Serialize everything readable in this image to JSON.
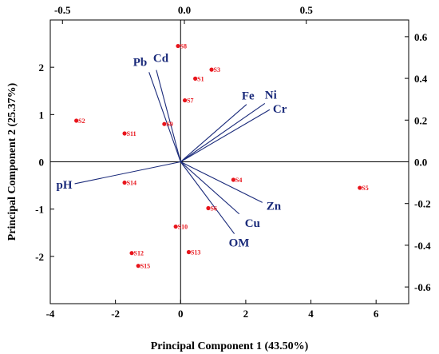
{
  "chart_data": {
    "type": "scatter",
    "subtype": "biplot",
    "xlabel": "Principal Component 1 (43.50%)",
    "ylabel": "Principal Component 2 (25.37%)",
    "xlim": [
      -4,
      7
    ],
    "ylim": [
      -3,
      3
    ],
    "xticks": [
      -4,
      -2,
      0,
      2,
      4,
      6
    ],
    "yticks": [
      -2,
      -1,
      0,
      1,
      2
    ],
    "top_xlim": [
      -0.55,
      0.92
    ],
    "top_xticks": [
      -0.5,
      0,
      0.5
    ],
    "right_ylim": [
      -0.68,
      0.68
    ],
    "right_yticks": [
      -0.6,
      -0.4,
      -0.2,
      0.0,
      0.2,
      0.4,
      0.6
    ],
    "grid": false,
    "colors": {
      "points": "#e8141b",
      "loadings": "#1a2a7a",
      "axes": "#000000"
    },
    "scores": [
      {
        "label": "S1",
        "x": 0.45,
        "y": 1.76
      },
      {
        "label": "S2",
        "x": -3.2,
        "y": 0.87
      },
      {
        "label": "S3",
        "x": 0.95,
        "y": 1.95
      },
      {
        "label": "S4",
        "x": 1.62,
        "y": -0.38
      },
      {
        "label": "S5",
        "x": 5.5,
        "y": -0.55
      },
      {
        "label": "S6",
        "x": 0.85,
        "y": -0.98
      },
      {
        "label": "S7",
        "x": 0.13,
        "y": 1.3
      },
      {
        "label": "S8",
        "x": -0.08,
        "y": 2.45
      },
      {
        "label": "S9",
        "x": -0.5,
        "y": 0.8
      },
      {
        "label": "S10",
        "x": -0.15,
        "y": -1.37
      },
      {
        "label": "S11",
        "x": -1.72,
        "y": 0.6
      },
      {
        "label": "S12",
        "x": -1.5,
        "y": -1.93
      },
      {
        "label": "S13",
        "x": 0.25,
        "y": -1.91
      },
      {
        "label": "S14",
        "x": -1.72,
        "y": -0.44
      },
      {
        "label": "S15",
        "x": -1.3,
        "y": -2.2
      }
    ],
    "loadings": [
      {
        "label": "Pb",
        "x": -0.145,
        "y": 0.43
      },
      {
        "label": "Cd",
        "x": -0.115,
        "y": 0.44
      },
      {
        "label": "Fe",
        "x": 0.255,
        "y": 0.275
      },
      {
        "label": "Ni",
        "x": 0.33,
        "y": 0.28
      },
      {
        "label": "Cr",
        "x": 0.35,
        "y": 0.25
      },
      {
        "label": "pH",
        "x": -0.45,
        "y": -0.105
      },
      {
        "label": "Cu",
        "x": 0.225,
        "y": -0.25
      },
      {
        "label": "Zn",
        "x": 0.32,
        "y": -0.195
      },
      {
        "label": "OM",
        "x": 0.205,
        "y": -0.345
      }
    ]
  }
}
